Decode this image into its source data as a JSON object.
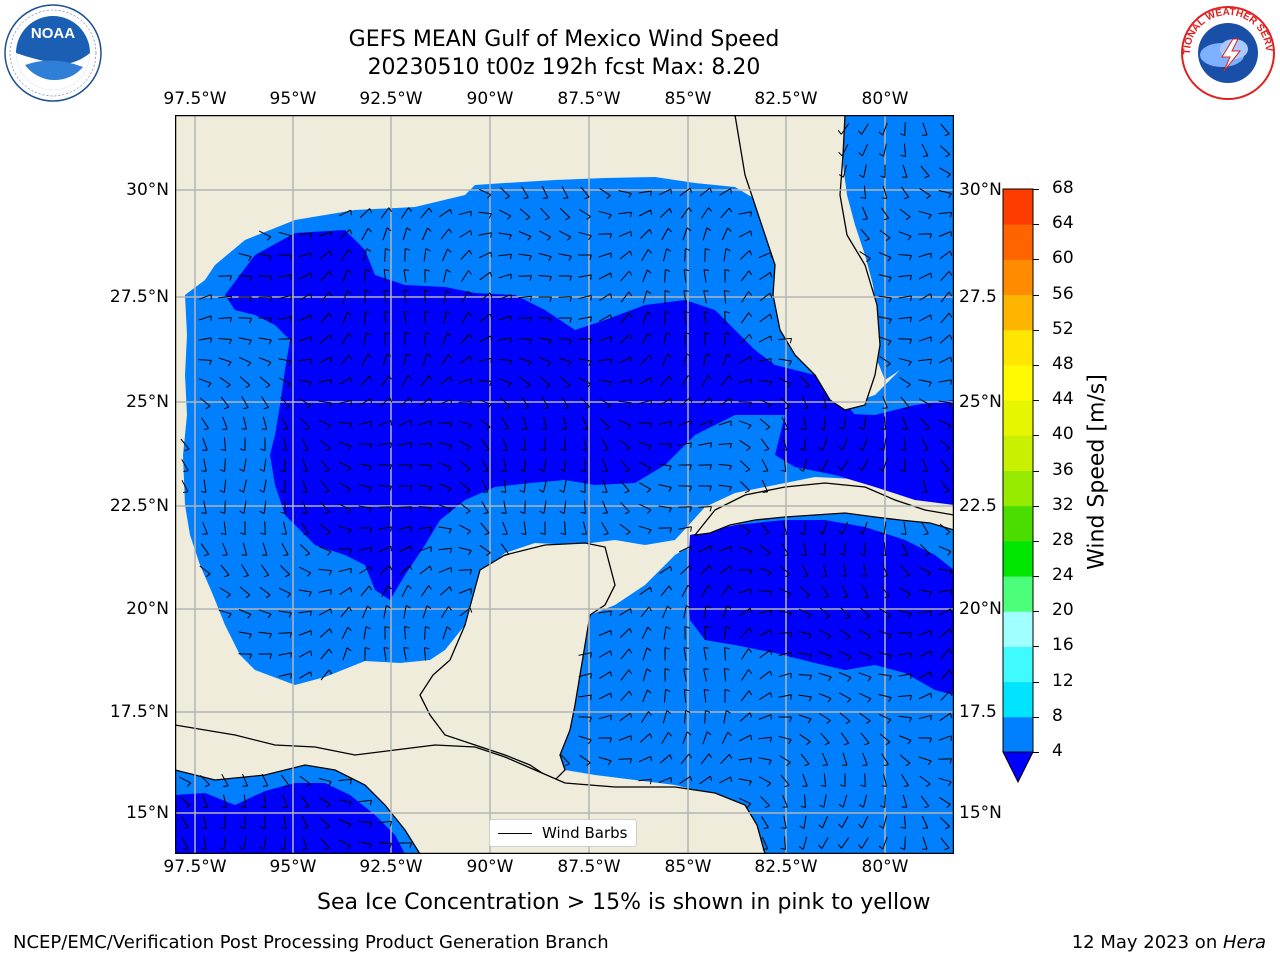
{
  "header": {
    "title_line1": "GEFS MEAN Gulf of Mexico Wind Speed",
    "title_line2": "20230510 t00z 192h fcst   Max: 8.20"
  },
  "logos": {
    "left": {
      "name": "NOAA",
      "ring_text": "NATIONAL OCEANIC AND ATMOSPHERIC ADMINISTRATION · U.S. DEPARTMENT OF COMMERCE"
    },
    "right": {
      "ring_text": "NATIONAL WEATHER SERVICE"
    }
  },
  "map": {
    "lon_labels": [
      "97.5°W",
      "95°W",
      "92.5°W",
      "90°W",
      "87.5°W",
      "85°W",
      "82.5°W",
      "80°W"
    ],
    "lat_labels_left": [
      "30°N",
      "27.5°N",
      "25°N",
      "22.5°N",
      "20°N",
      "17.5°N",
      "15°N"
    ],
    "lat_labels_right": [
      "30°N",
      "27.5",
      "25°N",
      "22.5",
      "20°N",
      "17.5",
      "15°N"
    ],
    "colors": {
      "land": "#efecdc",
      "wind_lt4": "#0000ff",
      "wind_4_8": "#0080ff",
      "grid": "#b4b4b4",
      "coast": "#000000"
    }
  },
  "legend": {
    "label": "Wind Barbs"
  },
  "colorbar": {
    "label": "Wind Speed [m/s]",
    "ticks": [
      "4",
      "8",
      "12",
      "16",
      "20",
      "24",
      "28",
      "32",
      "36",
      "40",
      "44",
      "48",
      "52",
      "56",
      "60",
      "64",
      "68"
    ],
    "colors": [
      "#0080ff",
      "#00e4ff",
      "#3ffaff",
      "#a0ffff",
      "#4bff7a",
      "#00e600",
      "#4bdc00",
      "#96eb00",
      "#c8f000",
      "#e6f500",
      "#fffa00",
      "#ffe600",
      "#ffb400",
      "#ff8c00",
      "#ff6400",
      "#ff3c00",
      "#ff0000"
    ],
    "under_color": "#0000ff"
  },
  "footer": {
    "note": "Sea Ice Concentration > 15% is shown in pink to yellow",
    "left": "NCEP/EMC/Verification Post Processing Product Generation Branch",
    "right_prefix": "12 May 2023 on ",
    "right_machine": "Hera"
  }
}
